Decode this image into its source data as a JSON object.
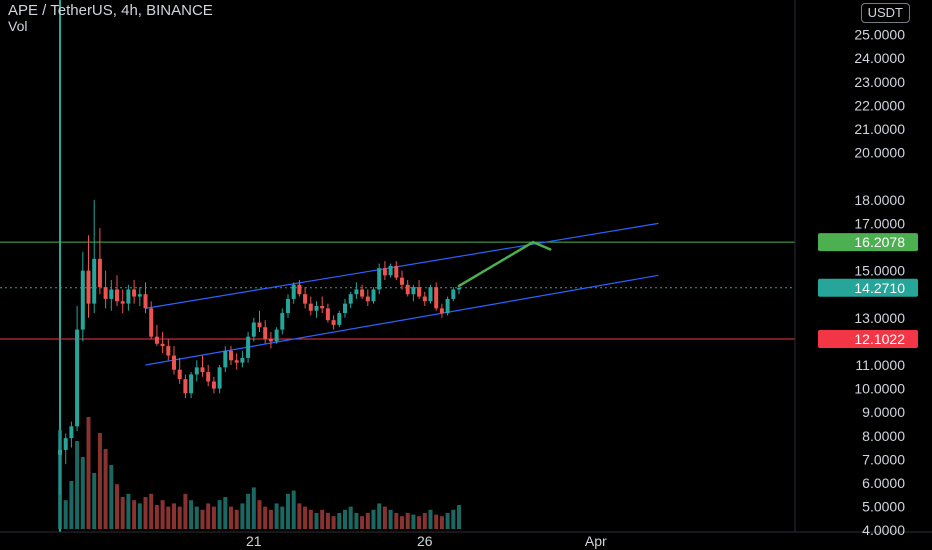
{
  "header": {
    "title": "APE / TetherUS, 4h, BINANCE",
    "volume_label": "Vol",
    "currency": "USDT"
  },
  "colors": {
    "up": "#26a69a",
    "down": "#ef5350",
    "channel": "#2962ff",
    "resistance": "#4caf50",
    "support": "#f23645",
    "last_price": "#26a69a"
  },
  "chart_data": {
    "type": "candlestick",
    "symbol": "APE / TetherUS",
    "interval": "4h",
    "exchange": "BINANCE",
    "price_axis": {
      "min": 4,
      "max": 26,
      "ticks": [
        "25.0000",
        "24.0000",
        "23.0000",
        "22.0000",
        "21.0000",
        "20.0000",
        "18.0000",
        "17.0000",
        "15.0000",
        "13.0000",
        "11.0000",
        "10.0000",
        "9.0000",
        "8.0000",
        "7.0000",
        "6.0000",
        "5.0000",
        "4.0000"
      ],
      "tick_values": [
        25,
        24,
        23,
        22,
        21,
        20,
        18,
        17,
        15,
        13,
        11,
        10,
        9,
        8,
        7,
        6,
        5,
        4
      ]
    },
    "time_axis": {
      "labels": [
        "21",
        "26",
        "Apr"
      ],
      "label_index": [
        34,
        64,
        94
      ]
    },
    "horizontal_levels": [
      {
        "value": 16.2078,
        "label": "16.2078",
        "kind": "resistance"
      },
      {
        "value": 14.271,
        "label": "14.2710",
        "kind": "last"
      },
      {
        "value": 12.1022,
        "label": "12.1022",
        "kind": "support"
      }
    ],
    "ohlc": [
      [
        7.2,
        8.2,
        5.5,
        7.4
      ],
      [
        7.4,
        8.1,
        6.8,
        7.9
      ],
      [
        7.9,
        8.6,
        7.5,
        8.4
      ],
      [
        8.4,
        13.5,
        8.2,
        12.5
      ],
      [
        12.5,
        15.8,
        12,
        15.0
      ],
      [
        15.0,
        16.5,
        13.0,
        13.6
      ],
      [
        13.6,
        18.0,
        13.2,
        15.5
      ],
      [
        15.5,
        16.8,
        14.0,
        14.3
      ],
      [
        14.3,
        15.0,
        13.4,
        13.8
      ],
      [
        13.8,
        14.6,
        13.3,
        14.2
      ],
      [
        14.2,
        14.8,
        13.5,
        13.7
      ],
      [
        13.7,
        14.2,
        13.2,
        13.6
      ],
      [
        13.6,
        14.4,
        13.3,
        14.2
      ],
      [
        14.2,
        14.6,
        13.6,
        13.9
      ],
      [
        13.9,
        14.3,
        13.5,
        14.0
      ],
      [
        14.0,
        14.5,
        13.2,
        13.4
      ],
      [
        13.4,
        13.7,
        12.1,
        12.2
      ],
      [
        12.2,
        12.7,
        11.8,
        11.9
      ],
      [
        11.9,
        12.4,
        11.5,
        11.8
      ],
      [
        11.8,
        12.1,
        11.2,
        11.4
      ],
      [
        11.4,
        11.8,
        10.6,
        10.8
      ],
      [
        10.8,
        11.3,
        10.2,
        10.4
      ],
      [
        10.4,
        10.6,
        9.6,
        9.8
      ],
      [
        9.8,
        10.7,
        9.6,
        10.6
      ],
      [
        10.6,
        11.2,
        10.3,
        10.9
      ],
      [
        10.9,
        11.4,
        10.5,
        10.7
      ],
      [
        10.7,
        11.0,
        10.1,
        10.3
      ],
      [
        10.3,
        10.5,
        9.8,
        10.0
      ],
      [
        10.0,
        11.0,
        9.8,
        10.9
      ],
      [
        10.9,
        11.8,
        10.7,
        11.6
      ],
      [
        11.6,
        11.8,
        11.0,
        11.2
      ],
      [
        11.2,
        11.5,
        10.8,
        11.1
      ],
      [
        11.1,
        11.6,
        10.9,
        11.3
      ],
      [
        11.3,
        12.4,
        11.1,
        12.2
      ],
      [
        12.2,
        13.0,
        12.0,
        12.8
      ],
      [
        12.8,
        13.3,
        12.4,
        12.6
      ],
      [
        12.6,
        12.9,
        11.9,
        12.1
      ],
      [
        12.1,
        12.4,
        11.7,
        12.0
      ],
      [
        12.0,
        12.6,
        11.9,
        12.5
      ],
      [
        12.5,
        13.4,
        12.3,
        13.2
      ],
      [
        13.2,
        14.0,
        13.0,
        13.8
      ],
      [
        13.8,
        14.5,
        13.6,
        14.4
      ],
      [
        14.4,
        14.6,
        13.9,
        14.0
      ],
      [
        14.0,
        14.3,
        13.4,
        13.6
      ],
      [
        13.6,
        13.9,
        13.1,
        13.3
      ],
      [
        13.3,
        13.7,
        13.0,
        13.5
      ],
      [
        13.5,
        13.9,
        13.2,
        13.4
      ],
      [
        13.4,
        13.6,
        12.8,
        12.9
      ],
      [
        12.9,
        13.1,
        12.5,
        12.7
      ],
      [
        12.7,
        13.3,
        12.6,
        13.2
      ],
      [
        13.2,
        13.8,
        13.0,
        13.6
      ],
      [
        13.6,
        14.1,
        13.4,
        14.0
      ],
      [
        14.0,
        14.5,
        13.8,
        14.2
      ],
      [
        14.2,
        14.4,
        13.8,
        13.9
      ],
      [
        13.9,
        14.2,
        13.5,
        13.7
      ],
      [
        13.7,
        14.3,
        13.6,
        14.2
      ],
      [
        14.2,
        15.3,
        14.0,
        15.1
      ],
      [
        15.1,
        15.4,
        14.6,
        14.8
      ],
      [
        14.8,
        15.3,
        14.7,
        15.2
      ],
      [
        15.2,
        15.4,
        14.6,
        14.7
      ],
      [
        14.7,
        15.0,
        14.2,
        14.4
      ],
      [
        14.4,
        14.6,
        13.9,
        14.0
      ],
      [
        14.0,
        14.4,
        13.7,
        14.3
      ],
      [
        14.3,
        14.6,
        13.8,
        13.9
      ],
      [
        13.9,
        14.1,
        13.5,
        13.7
      ],
      [
        13.7,
        14.4,
        13.6,
        14.3
      ],
      [
        14.3,
        14.5,
        13.3,
        13.4
      ],
      [
        13.4,
        13.6,
        13.0,
        13.2
      ],
      [
        13.2,
        13.9,
        13.1,
        13.8
      ],
      [
        13.8,
        14.3,
        13.7,
        14.2
      ],
      [
        14.2,
        14.4,
        14.0,
        14.27
      ]
    ],
    "volume": [
      62,
      18,
      30,
      55,
      45,
      70,
      35,
      60,
      50,
      40,
      28,
      20,
      22,
      18,
      16,
      20,
      22,
      15,
      18,
      14,
      16,
      14,
      22,
      18,
      14,
      12,
      16,
      14,
      18,
      20,
      14,
      12,
      16,
      22,
      26,
      18,
      14,
      12,
      16,
      14,
      22,
      24,
      16,
      14,
      12,
      10,
      12,
      10,
      8,
      10,
      12,
      14,
      10,
      8,
      10,
      12,
      16,
      14,
      12,
      10,
      8,
      10,
      9,
      8,
      10,
      12,
      9,
      8,
      10,
      12,
      15
    ],
    "volume_up_flags": [
      1,
      1,
      1,
      1,
      1,
      0,
      1,
      0,
      0,
      1,
      0,
      0,
      1,
      0,
      1,
      0,
      0,
      0,
      0,
      0,
      0,
      0,
      0,
      1,
      1,
      0,
      0,
      0,
      1,
      1,
      0,
      0,
      1,
      1,
      1,
      0,
      0,
      0,
      1,
      1,
      1,
      1,
      0,
      0,
      0,
      1,
      0,
      0,
      0,
      1,
      1,
      1,
      1,
      0,
      0,
      1,
      1,
      0,
      1,
      0,
      0,
      0,
      1,
      0,
      0,
      1,
      0,
      0,
      1,
      1,
      1
    ],
    "annotations": [
      {
        "type": "parallel_channel",
        "from_index": 15,
        "to_index": 105,
        "upper_start": 13.4,
        "upper_end": 17.0,
        "lower_start": 11.0,
        "lower_end": 14.8
      },
      {
        "type": "arrow",
        "points": [
          [
            70,
            14.35
          ],
          [
            83,
            16.2078
          ],
          [
            86,
            15.9
          ]
        ]
      }
    ],
    "grid": false
  }
}
